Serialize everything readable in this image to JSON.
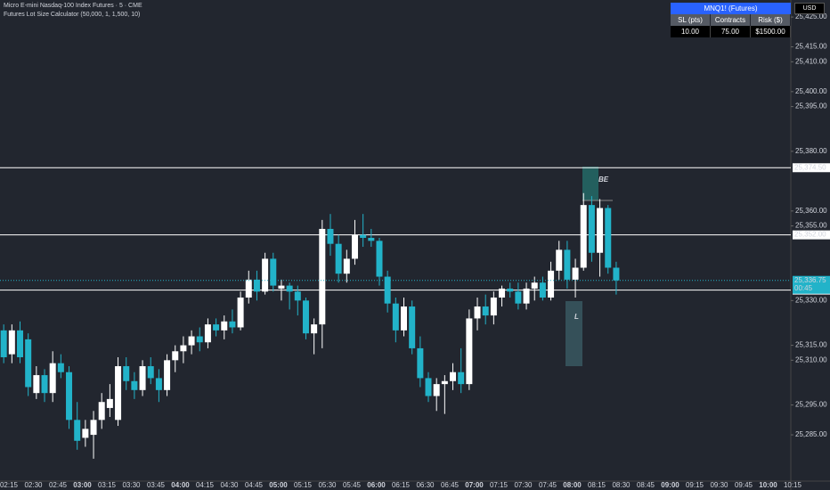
{
  "chart_data": {
    "type": "candlestick",
    "title": "Micro E-mini Nasdaq-100 Index Futures · 5 · CME",
    "subtitle": "Futures Lot Size Calculator (50,000, 1, 1,500, 10)",
    "currency": "USD",
    "up_color": "#ffffff",
    "down_color": "#22b3c9",
    "open": [
      25321,
      25320,
      25312,
      25320,
      25317,
      25299,
      25305,
      25299,
      25309,
      25306,
      25290,
      25284,
      25285,
      25290,
      25294,
      25290,
      25308,
      25303,
      25300,
      25308,
      25304,
      25300,
      25310,
      25313,
      25315,
      25318,
      25316,
      25322,
      25320,
      25323,
      25321,
      25331,
      25337,
      25333,
      25344,
      25334,
      25335,
      25333,
      25330,
      25319,
      25322,
      25354,
      25349,
      25339,
      25344,
      25352,
      25351,
      25350,
      25338,
      25329,
      25320,
      25328,
      25314,
      25304,
      25298,
      25302,
      25303,
      25306,
      25302,
      25324,
      25328,
      25325,
      25331,
      25334,
      25333,
      25329,
      25334,
      25336,
      25331,
      25340,
      25347,
      25337,
      25341,
      25362,
      25346,
      25361,
      25341
    ],
    "high": [
      25324,
      25322,
      25322,
      25323,
      25319,
      25308,
      25307,
      25313,
      25312,
      25308,
      25296,
      25290,
      25293,
      25299,
      25302,
      25311,
      25311,
      25306,
      25310,
      25311,
      25307,
      25312,
      25315,
      25318,
      25320,
      25321,
      25324,
      25324,
      25325,
      25327,
      25333,
      25340,
      25340,
      25346,
      25346,
      25337,
      25336,
      25335,
      25331,
      25324,
      25357,
      25359,
      25352,
      25347,
      25357,
      25359,
      25354,
      25351,
      25340,
      25331,
      25331,
      25330,
      25318,
      25306,
      25304,
      25305,
      25309,
      25314,
      25327,
      25331,
      25332,
      25333,
      25335,
      25336,
      25336,
      25336,
      25338,
      25338,
      25343,
      25350,
      25350,
      25344,
      25366,
      25365,
      25364,
      25362,
      25343
    ],
    "low": [
      25314,
      25309,
      25309,
      25309,
      25298,
      25297,
      25296,
      25296,
      25304,
      25287,
      25280,
      25281,
      25277,
      25287,
      25291,
      25288,
      25300,
      25297,
      25298,
      25302,
      25296,
      25298,
      25306,
      25309,
      25312,
      25313,
      25314,
      25318,
      25317,
      25319,
      25320,
      25329,
      25330,
      25332,
      25333,
      25330,
      25327,
      25325,
      25317,
      25312,
      25314,
      25345,
      25336,
      25336,
      25342,
      25348,
      25348,
      25335,
      25326,
      25316,
      25318,
      25312,
      25301,
      25296,
      25293,
      25292,
      25300,
      25299,
      25300,
      25320,
      25322,
      25322,
      25328,
      25331,
      25327,
      25327,
      25330,
      25330,
      25330,
      25337,
      25334,
      25331,
      25340,
      25343,
      25338,
      25339,
      25332
    ],
    "close": [
      25316,
      25311,
      25320,
      25311,
      25301,
      25305,
      25299,
      25309,
      25306,
      25290,
      25283,
      25287,
      25290,
      25296,
      25297,
      25308,
      25303,
      25300,
      25308,
      25304,
      25300,
      25310,
      25313,
      25315,
      25318,
      25316,
      25322,
      25320,
      25323,
      25321,
      25331,
      25337,
      25333,
      25344,
      25335,
      25335,
      25333,
      25330,
      25319,
      25322,
      25354,
      25349,
      25339,
      25344,
      25352,
      25351,
      25350,
      25338,
      25329,
      25320,
      25328,
      25314,
      25304,
      25298,
      25302,
      25303,
      25306,
      25302,
      25324,
      25328,
      25325,
      25331,
      25334,
      25333,
      25329,
      25334,
      25336,
      25331,
      25340,
      25347,
      25337,
      25341,
      25362,
      25346,
      25361,
      25341,
      25336.75
    ],
    "ylim": [
      25269.5,
      25430.7
    ],
    "yticks": [
      {
        "value": 25425,
        "label": "25,425.00"
      },
      {
        "value": 25415,
        "label": "25,415.00"
      },
      {
        "value": 25410,
        "label": "25,410.00"
      },
      {
        "value": 25400,
        "label": "25,400.00"
      },
      {
        "value": 25395,
        "label": "25,395.00"
      },
      {
        "value": 25380,
        "label": "25,380.00"
      },
      {
        "value": 25360,
        "label": "25,360.00"
      },
      {
        "value": 25355,
        "label": "25,355.00"
      },
      {
        "value": 25330,
        "label": "25,330.00"
      },
      {
        "value": 25315,
        "label": "25,315.00"
      },
      {
        "value": 25310,
        "label": "25,310.00"
      },
      {
        "value": 25295,
        "label": "25,295.00"
      },
      {
        "value": 25285,
        "label": "25,285.00"
      }
    ],
    "xticks": [
      "02:15",
      "02:30",
      "02:45",
      "03:00",
      "03:15",
      "03:30",
      "03:45",
      "04:00",
      "04:15",
      "04:30",
      "04:45",
      "05:00",
      "05:15",
      "05:30",
      "05:45",
      "06:00",
      "06:15",
      "06:30",
      "06:45",
      "07:00",
      "07:15",
      "07:30",
      "07:45",
      "08:00",
      "08:15",
      "08:30",
      "08:45",
      "09:00",
      "09:15",
      "09:30",
      "09:45",
      "10:00",
      "10:15"
    ],
    "lines": [
      {
        "value": 25374.5,
        "label": "25,374.50"
      },
      {
        "value": 25352,
        "label": "25,352.00"
      },
      {
        "value": 25333.5,
        "label": "25,333.50"
      }
    ],
    "last_price": {
      "value": 25336.75,
      "label": "25,336.75",
      "countdown": "00:45"
    },
    "position": {
      "target_label": "BE",
      "stop_label": "L"
    }
  },
  "calculator": {
    "title": "MNQ1! (Futures)",
    "headers": [
      "SL (pts)",
      "Contracts",
      "Risk ($)"
    ],
    "values": [
      "10.00",
      "75.00",
      "$1500.00"
    ]
  }
}
